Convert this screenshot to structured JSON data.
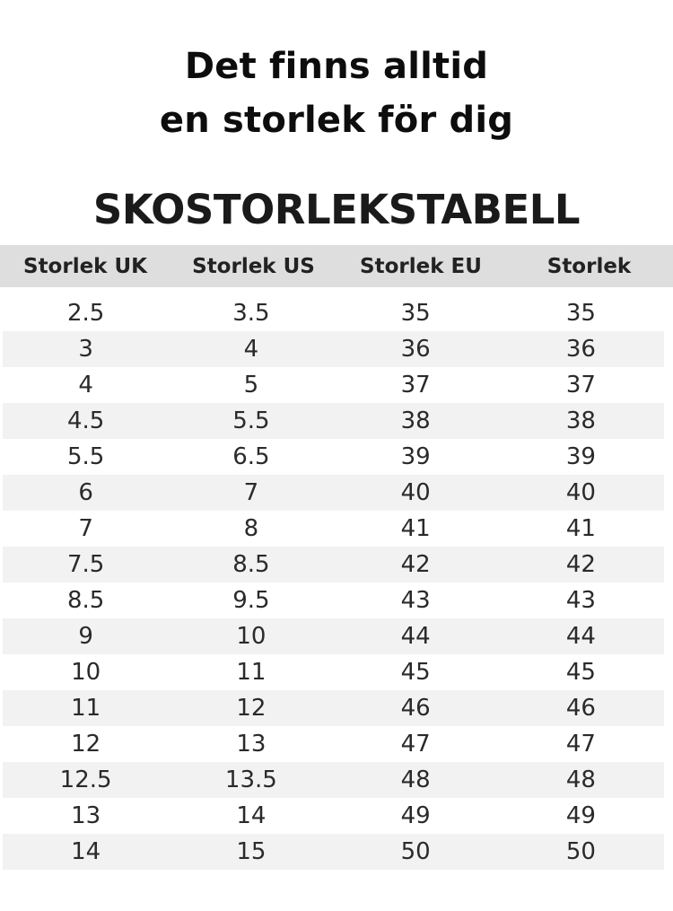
{
  "headline": {
    "line1": "Det finns alltid",
    "line2": "en storlek för dig"
  },
  "table": {
    "title": "SKOSTORLEKSTABELL",
    "headers": [
      "Storlek UK",
      "Storlek US",
      "Storlek EU",
      "Storlek"
    ],
    "rows": [
      [
        "2.5",
        "3.5",
        "35",
        "35"
      ],
      [
        "3",
        "4",
        "36",
        "36"
      ],
      [
        "4",
        "5",
        "37",
        "37"
      ],
      [
        "4.5",
        "5.5",
        "38",
        "38"
      ],
      [
        "5.5",
        "6.5",
        "39",
        "39"
      ],
      [
        "6",
        "7",
        "40",
        "40"
      ],
      [
        "7",
        "8",
        "41",
        "41"
      ],
      [
        "7.5",
        "8.5",
        "42",
        "42"
      ],
      [
        "8.5",
        "9.5",
        "43",
        "43"
      ],
      [
        "9",
        "10",
        "44",
        "44"
      ],
      [
        "10",
        "11",
        "45",
        "45"
      ],
      [
        "11",
        "12",
        "46",
        "46"
      ],
      [
        "12",
        "13",
        "47",
        "47"
      ],
      [
        "12.5",
        "13.5",
        "48",
        "48"
      ],
      [
        "13",
        "14",
        "49",
        "49"
      ],
      [
        "14",
        "15",
        "50",
        "50"
      ]
    ]
  },
  "colors": {
    "header_background": "#dedede",
    "stripe_background": "#f2f2f2",
    "text": "#111111"
  }
}
